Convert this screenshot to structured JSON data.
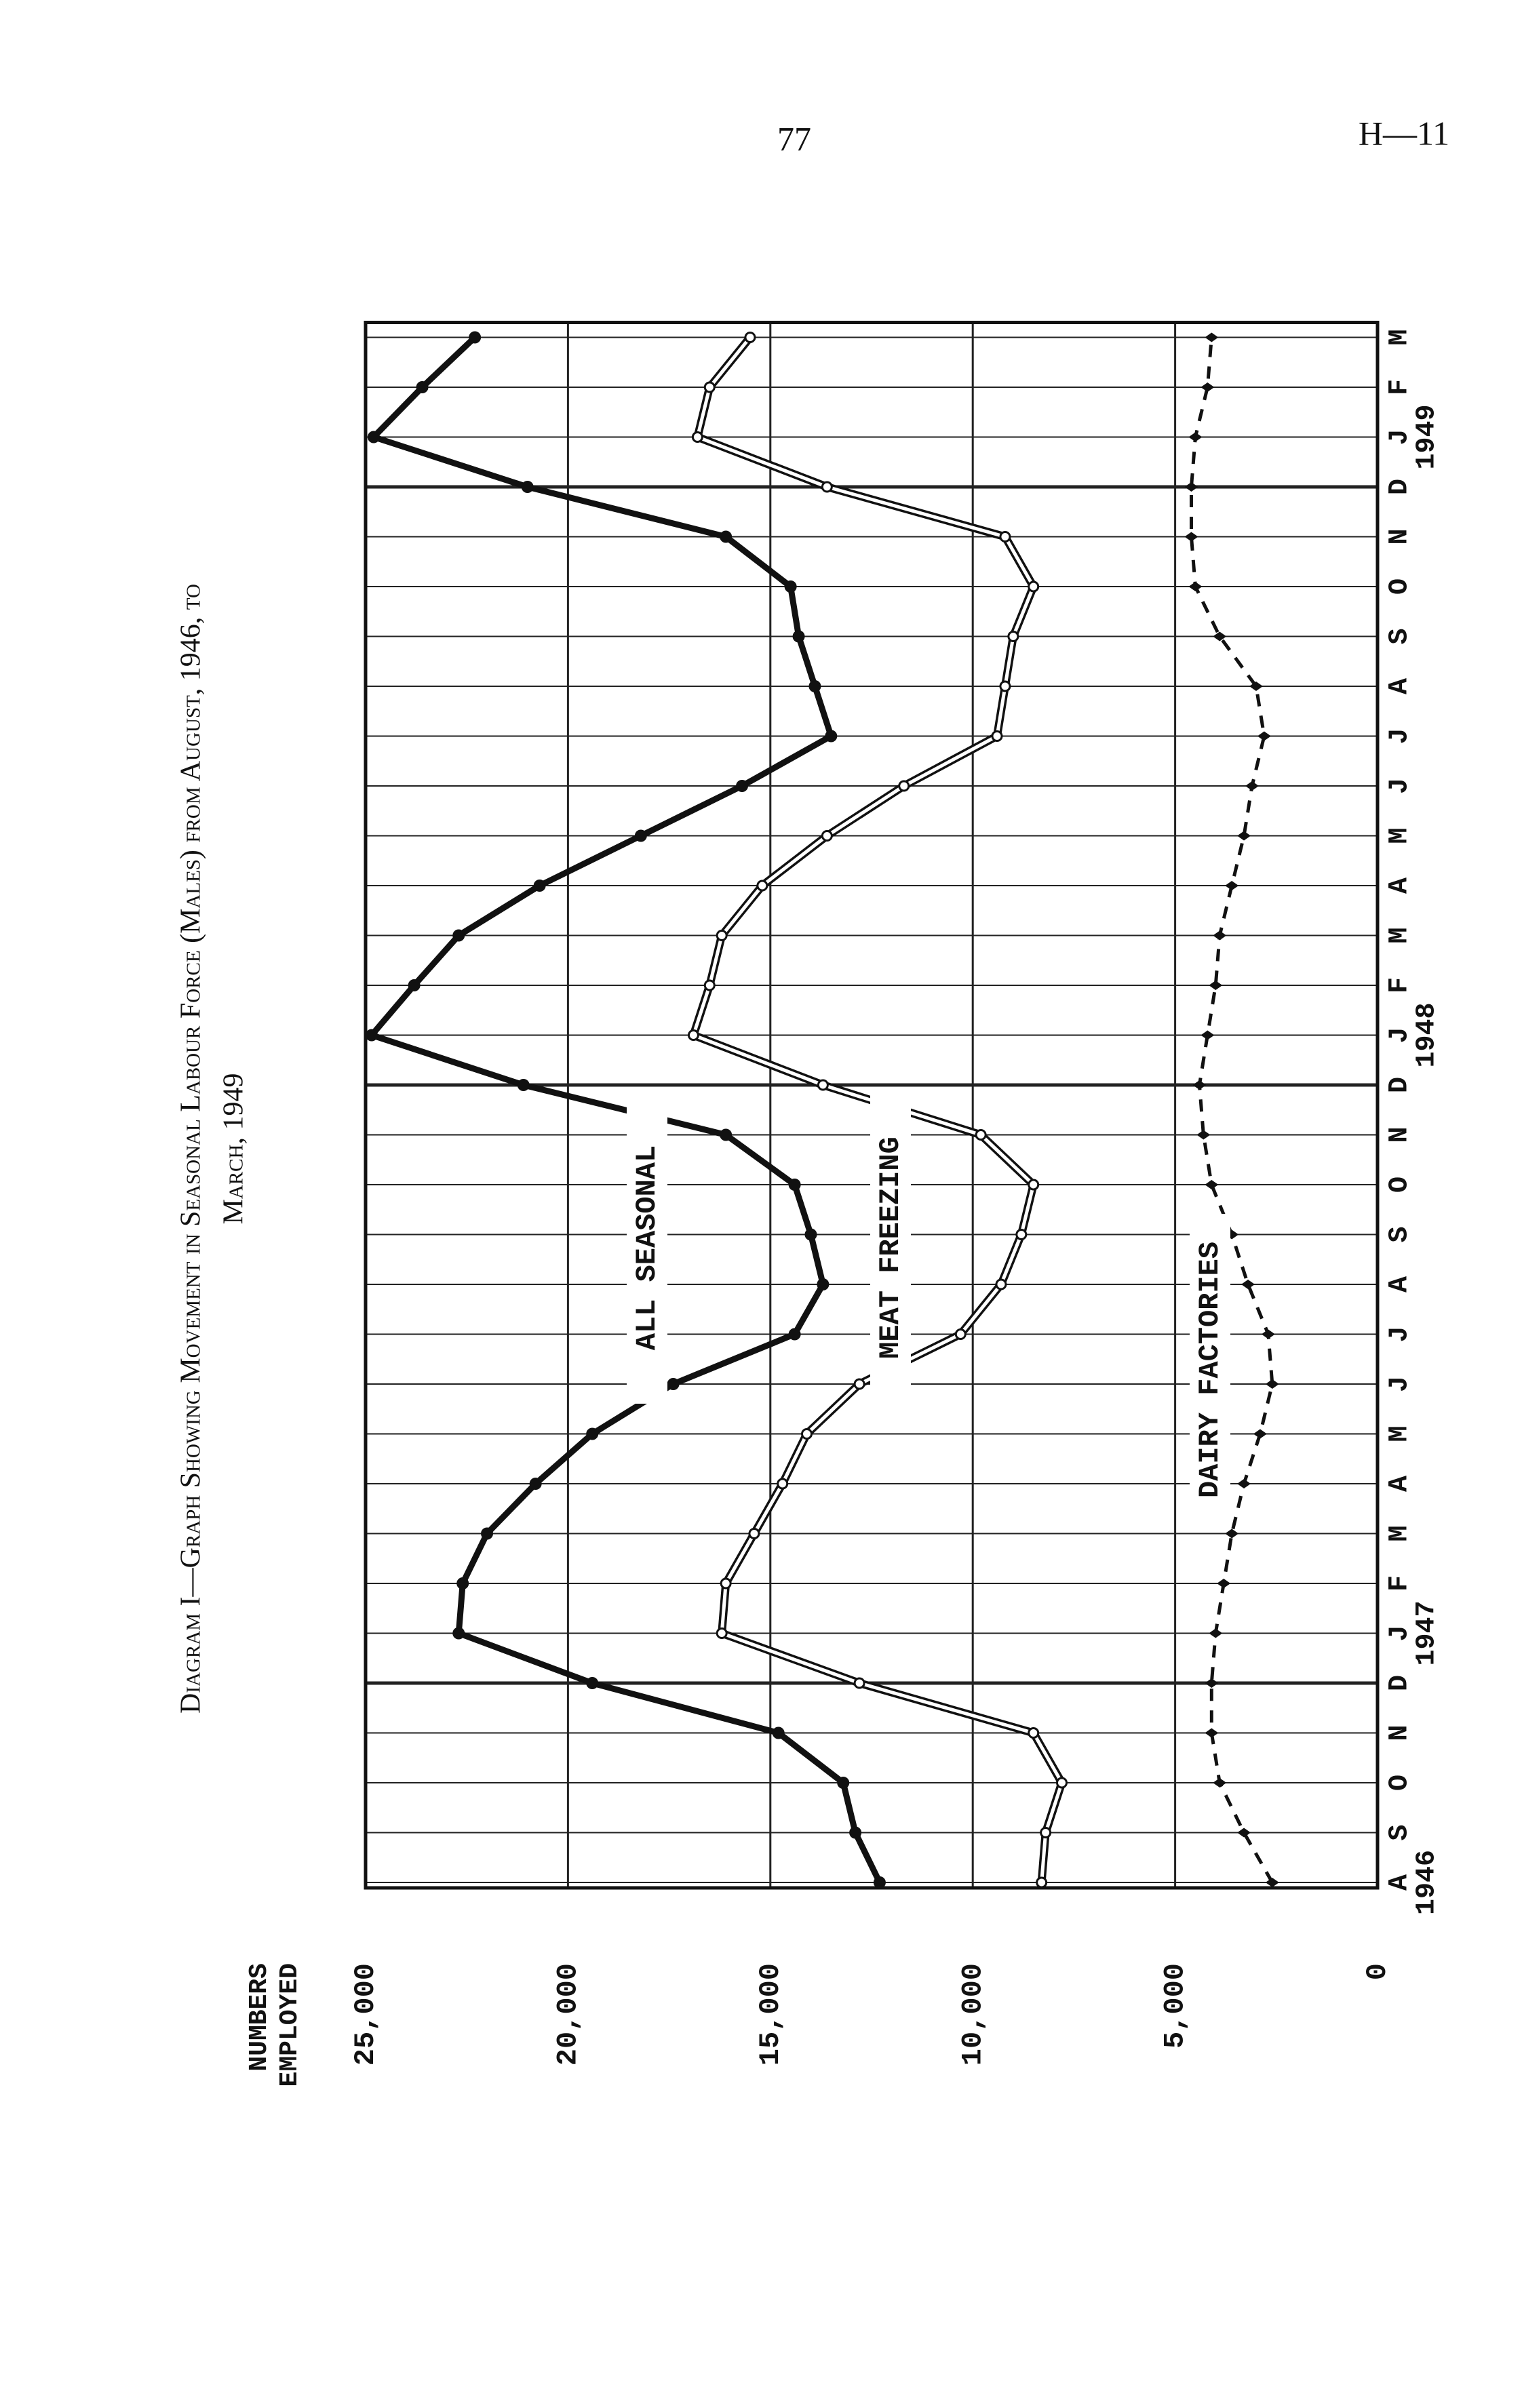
{
  "page": {
    "number": "77",
    "ref": "H—11"
  },
  "chart_data": {
    "type": "line",
    "title": [
      "Diagram I—Graph Showing Movement in Seasonal Labour Force (Males) from August, 1946, to",
      "March, 1949"
    ],
    "y_label": [
      "NUMBERS",
      "EMPLOYED"
    ],
    "categories": [
      "A",
      "S",
      "O",
      "N",
      "D",
      "J",
      "F",
      "M",
      "A",
      "M",
      "J",
      "J",
      "A",
      "S",
      "O",
      "N",
      "D",
      "J",
      "F",
      "M",
      "A",
      "M",
      "J",
      "J",
      "A",
      "S",
      "O",
      "N",
      "D",
      "J",
      "F",
      "M"
    ],
    "year_labels": [
      {
        "text": "1946",
        "at": 0
      },
      {
        "text": "1947",
        "at": 5
      },
      {
        "text": "1948",
        "at": 17
      },
      {
        "text": "1949",
        "at": 29
      }
    ],
    "ylim": [
      0,
      25000
    ],
    "yticks": [
      0,
      {
        "value": 5000,
        "label": "5,000"
      },
      {
        "value": 10000,
        "label": "10,000"
      },
      {
        "value": 15000,
        "label": "15,000"
      },
      {
        "value": 20000,
        "label": "20,000"
      },
      {
        "value": 25000,
        "label": "25,000"
      }
    ],
    "grid": true,
    "series": [
      {
        "name": "ALL SEASONAL",
        "color": "#111111",
        "style": "thick",
        "values": [
          12300,
          12900,
          13200,
          14800,
          19400,
          22700,
          22600,
          22000,
          20800,
          19400,
          17400,
          14400,
          13700,
          14000,
          14400,
          16100,
          21100,
          24850,
          23800,
          22700,
          20700,
          18200,
          15700,
          13500,
          13900,
          14300,
          14500,
          16100,
          21000,
          24800,
          23600,
          22300
        ]
      },
      {
        "name": "MEAT FREEZING",
        "color": "#111111",
        "style": "double",
        "values": [
          8300,
          8200,
          7800,
          8500,
          12800,
          16200,
          16100,
          15400,
          14700,
          14100,
          12800,
          10300,
          9300,
          8800,
          8500,
          9800,
          13700,
          16900,
          16500,
          16200,
          15200,
          13600,
          11700,
          9400,
          9200,
          9000,
          8500,
          9200,
          13600,
          16800,
          16500,
          15500
        ]
      },
      {
        "name": "DAIRY FACTORIES",
        "color": "#111111",
        "style": "dashed",
        "values": [
          2600,
          3300,
          3900,
          4100,
          4100,
          4000,
          3800,
          3600,
          3300,
          2900,
          2600,
          2700,
          3200,
          3600,
          4100,
          4300,
          4400,
          4200,
          4000,
          3900,
          3600,
          3300,
          3100,
          2800,
          3000,
          3900,
          4500,
          4600,
          4600,
          4500,
          4200,
          4100
        ]
      }
    ]
  }
}
